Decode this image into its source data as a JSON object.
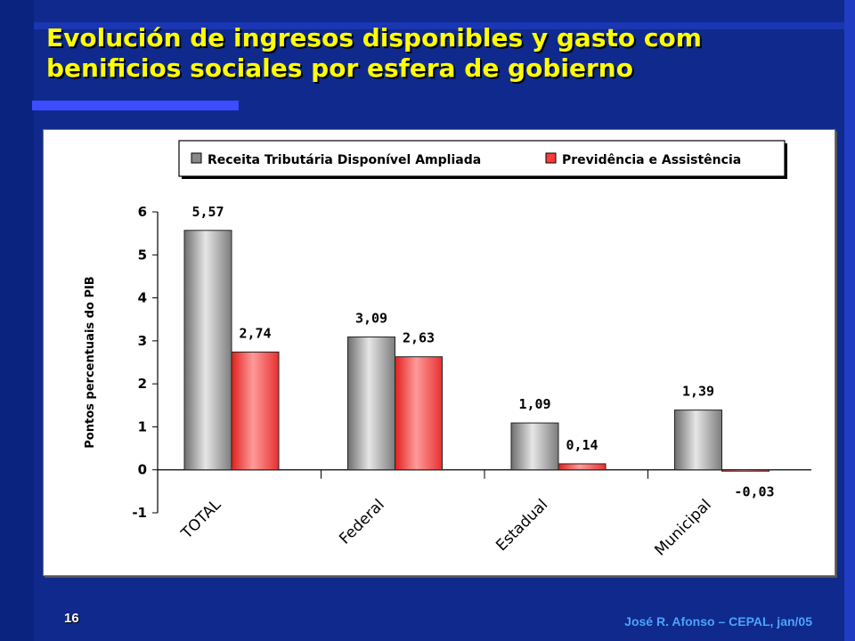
{
  "slide": {
    "title": "Evolución de ingresos disponibles y gasto com benificios sociales por esfera de gobierno",
    "page_number": "16",
    "footer": "José R. Afonso – CEPAL, jan/05"
  },
  "colors": {
    "background": "#0f2a8c",
    "title": "#ffff00",
    "series_gray": "#9a9a9a",
    "series_red": "#ff3b3b"
  },
  "chart_data": {
    "type": "bar",
    "categories": [
      "TOTAL",
      "Federal",
      "Estadual",
      "Municipal"
    ],
    "series": [
      {
        "name": "Receita Tributária Disponível Ampliada",
        "values": [
          5.57,
          3.09,
          1.09,
          1.39
        ],
        "labels": [
          "5,57",
          "3,09",
          "1,09",
          "1,39"
        ]
      },
      {
        "name": "Previdência e Assistência",
        "values": [
          2.74,
          2.63,
          0.14,
          -0.03
        ],
        "labels": [
          "2,74",
          "2,63",
          "0,14",
          "-0,03"
        ]
      }
    ],
    "ylabel": "Pontos percentuais do PIB",
    "ylim": [
      -1,
      6
    ],
    "yticks": [
      "-1",
      "0",
      "1",
      "2",
      "3",
      "4",
      "5",
      "6"
    ],
    "legend": "top",
    "grid": false
  }
}
